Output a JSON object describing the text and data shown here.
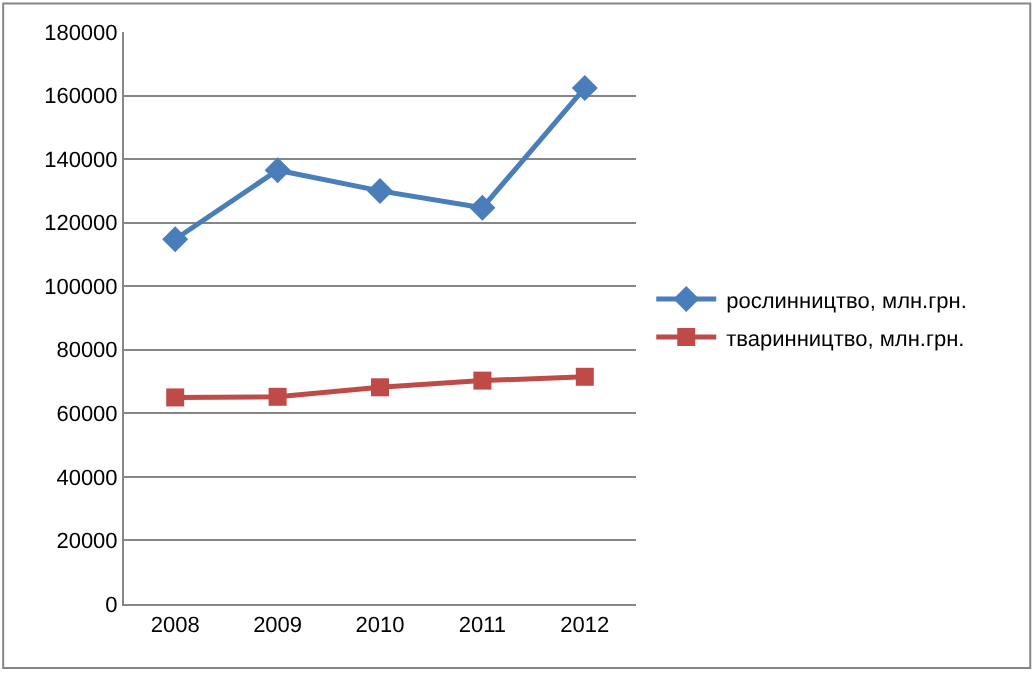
{
  "chart_data": {
    "type": "line",
    "categories": [
      "2008",
      "2009",
      "2010",
      "2011",
      "2012"
    ],
    "series": [
      {
        "name": "рослинництво, млн.грн.",
        "color": "#4a7ebb",
        "marker": "diamond",
        "values": [
          114800,
          136500,
          130000,
          124700,
          162400
        ]
      },
      {
        "name": "тваринництво, млн.грн.",
        "color": "#be4b48",
        "marker": "square",
        "values": [
          65000,
          65200,
          68200,
          70300,
          71500
        ]
      }
    ],
    "ylim": [
      0,
      180000
    ],
    "yticks": [
      0,
      20000,
      40000,
      60000,
      80000,
      100000,
      120000,
      140000,
      160000,
      180000
    ],
    "grid": "y",
    "legend": "right",
    "line_style": "solid"
  }
}
